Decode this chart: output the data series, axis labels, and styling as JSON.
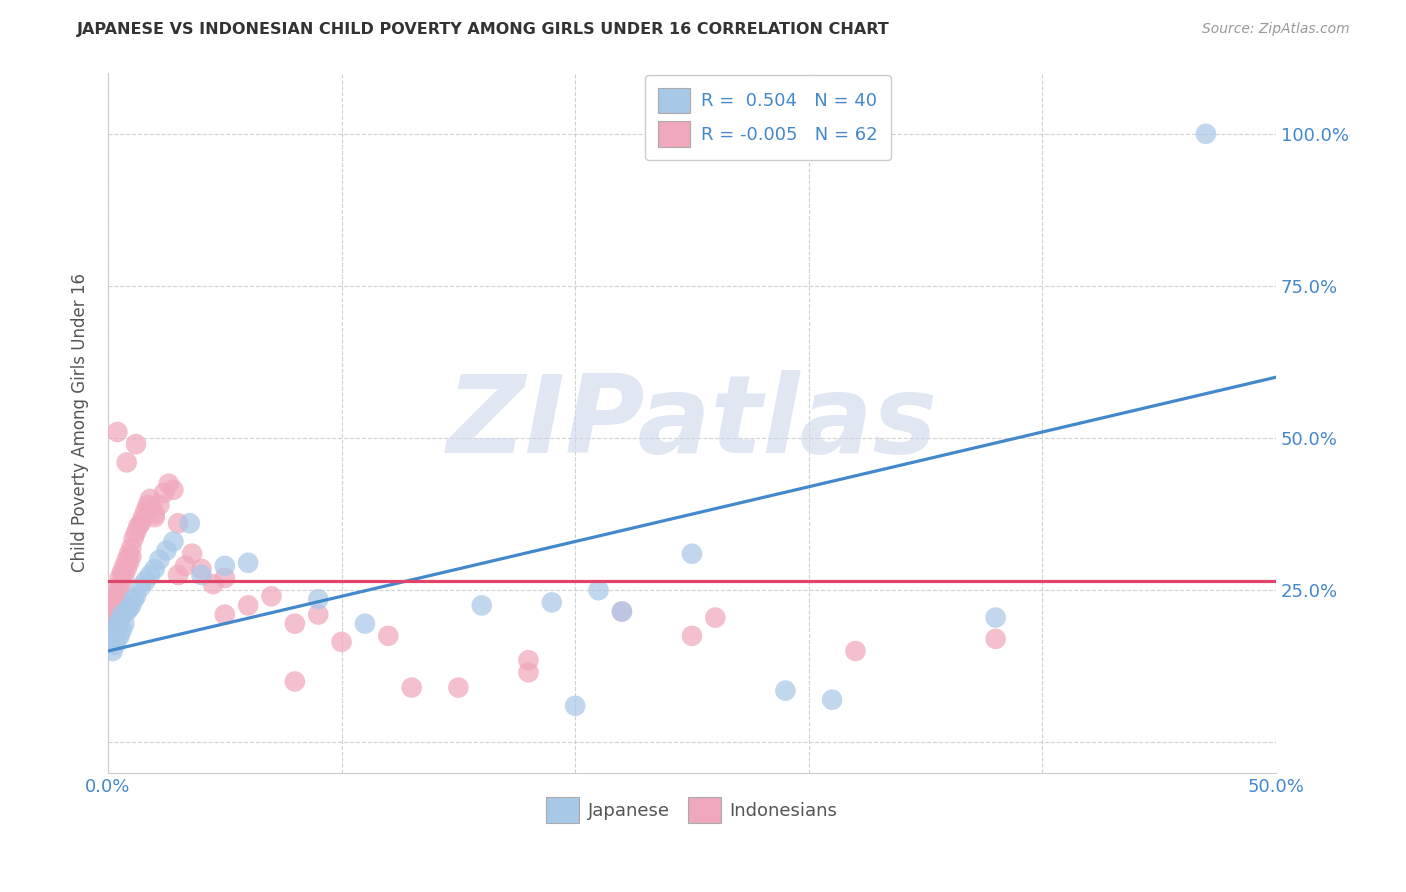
{
  "title": "JAPANESE VS INDONESIAN CHILD POVERTY AMONG GIRLS UNDER 16 CORRELATION CHART",
  "source": "Source: ZipAtlas.com",
  "ylabel": "Child Poverty Among Girls Under 16",
  "xlim": [
    0.0,
    0.5
  ],
  "ylim": [
    -0.05,
    1.1
  ],
  "xticks": [
    0.0,
    0.1,
    0.2,
    0.3,
    0.4,
    0.5
  ],
  "yticks": [
    0.0,
    0.25,
    0.5,
    0.75,
    1.0
  ],
  "japanese_color": "#a8c8e8",
  "indonesian_color": "#f0a8bc",
  "japanese_line_color": "#4488cc",
  "indonesian_line_color": "#e04468",
  "background_color": "#ffffff",
  "grid_color": "#cccccc",
  "watermark": "ZIPatlas",
  "jap_line_x": [
    0.0,
    0.5
  ],
  "jap_line_y": [
    0.15,
    0.6
  ],
  "ind_line_x": [
    0.0,
    0.5
  ],
  "ind_line_y": [
    0.265,
    0.265
  ],
  "japanese_x": [
    0.001,
    0.002,
    0.002,
    0.003,
    0.003,
    0.004,
    0.004,
    0.005,
    0.005,
    0.006,
    0.006,
    0.007,
    0.008,
    0.009,
    0.01,
    0.011,
    0.012,
    0.014,
    0.016,
    0.018,
    0.02,
    0.022,
    0.025,
    0.028,
    0.035,
    0.04,
    0.05,
    0.06,
    0.09,
    0.11,
    0.16,
    0.19,
    0.2,
    0.21,
    0.22,
    0.25,
    0.29,
    0.31,
    0.38,
    0.47
  ],
  "japanese_y": [
    0.165,
    0.15,
    0.175,
    0.16,
    0.185,
    0.17,
    0.195,
    0.175,
    0.2,
    0.185,
    0.21,
    0.195,
    0.215,
    0.22,
    0.225,
    0.235,
    0.24,
    0.255,
    0.265,
    0.275,
    0.285,
    0.3,
    0.315,
    0.33,
    0.36,
    0.275,
    0.29,
    0.295,
    0.235,
    0.195,
    0.225,
    0.23,
    0.06,
    0.25,
    0.215,
    0.31,
    0.085,
    0.07,
    0.205,
    1.0
  ],
  "indonesian_x": [
    0.001,
    0.001,
    0.002,
    0.002,
    0.003,
    0.003,
    0.004,
    0.004,
    0.005,
    0.005,
    0.006,
    0.006,
    0.007,
    0.007,
    0.008,
    0.008,
    0.009,
    0.009,
    0.01,
    0.01,
    0.011,
    0.012,
    0.013,
    0.014,
    0.015,
    0.016,
    0.017,
    0.018,
    0.019,
    0.02,
    0.022,
    0.024,
    0.026,
    0.028,
    0.03,
    0.033,
    0.036,
    0.04,
    0.045,
    0.05,
    0.06,
    0.07,
    0.08,
    0.09,
    0.1,
    0.12,
    0.15,
    0.18,
    0.22,
    0.26,
    0.004,
    0.008,
    0.012,
    0.02,
    0.03,
    0.05,
    0.08,
    0.13,
    0.18,
    0.25,
    0.32,
    0.38
  ],
  "indonesian_y": [
    0.195,
    0.215,
    0.2,
    0.225,
    0.22,
    0.24,
    0.235,
    0.25,
    0.255,
    0.27,
    0.265,
    0.28,
    0.275,
    0.29,
    0.285,
    0.3,
    0.295,
    0.31,
    0.305,
    0.32,
    0.335,
    0.345,
    0.355,
    0.36,
    0.37,
    0.38,
    0.39,
    0.4,
    0.385,
    0.375,
    0.39,
    0.41,
    0.425,
    0.415,
    0.275,
    0.29,
    0.31,
    0.285,
    0.26,
    0.27,
    0.225,
    0.24,
    0.195,
    0.21,
    0.165,
    0.175,
    0.09,
    0.115,
    0.215,
    0.205,
    0.51,
    0.46,
    0.49,
    0.37,
    0.36,
    0.21,
    0.1,
    0.09,
    0.135,
    0.175,
    0.15,
    0.17
  ]
}
